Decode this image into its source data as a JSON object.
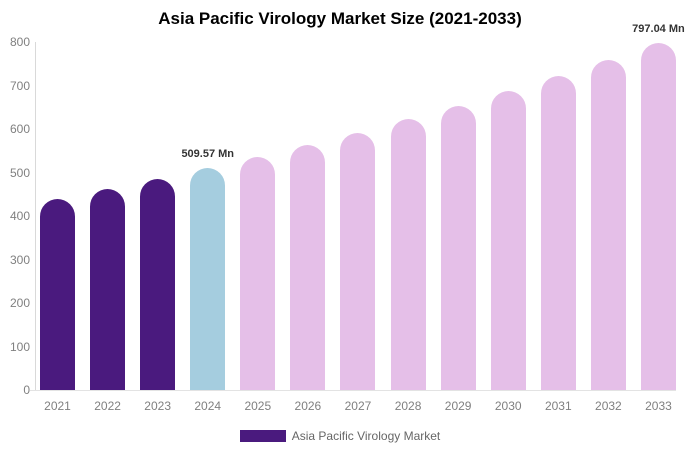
{
  "chart_data": {
    "type": "bar",
    "title": "Asia Pacific Virology Market Size (2021-2033)",
    "xlabel": "",
    "ylabel": "",
    "categories": [
      "2021",
      "2022",
      "2023",
      "2024",
      "2025",
      "2026",
      "2027",
      "2028",
      "2029",
      "2030",
      "2031",
      "2032",
      "2033"
    ],
    "values": [
      439,
      461,
      485,
      509.57,
      535,
      563,
      591,
      622,
      653,
      687,
      721,
      758,
      797.04
    ],
    "bar_colors": [
      "#4a1a7e",
      "#4a1a7e",
      "#4a1a7e",
      "#a5cddf",
      "#e5bfe8",
      "#e5bfe8",
      "#e5bfe8",
      "#e5bfe8",
      "#e5bfe8",
      "#e5bfe8",
      "#e5bfe8",
      "#e5bfe8",
      "#e5bfe8"
    ],
    "ylim": [
      0,
      800
    ],
    "yticks": [
      0,
      100,
      200,
      300,
      400,
      500,
      600,
      700,
      800
    ],
    "grid": false,
    "annotations": [
      {
        "category": "2024",
        "text": "509.57 Mn"
      },
      {
        "category": "2033",
        "text": "797.04 Mn"
      }
    ],
    "legend": {
      "position": "bottom",
      "items": [
        {
          "label": "Asia Pacific Virology Market",
          "color": "#4a1a7e"
        }
      ]
    }
  },
  "colors": {
    "historical_bar": "#4a1a7e",
    "current_year_bar": "#a5cddf",
    "forecast_bar": "#e5bfe8",
    "axis_line": "#d9d9d9",
    "tick_text": "#808080",
    "annotation_text": "#333333",
    "title_text": "#000000"
  }
}
